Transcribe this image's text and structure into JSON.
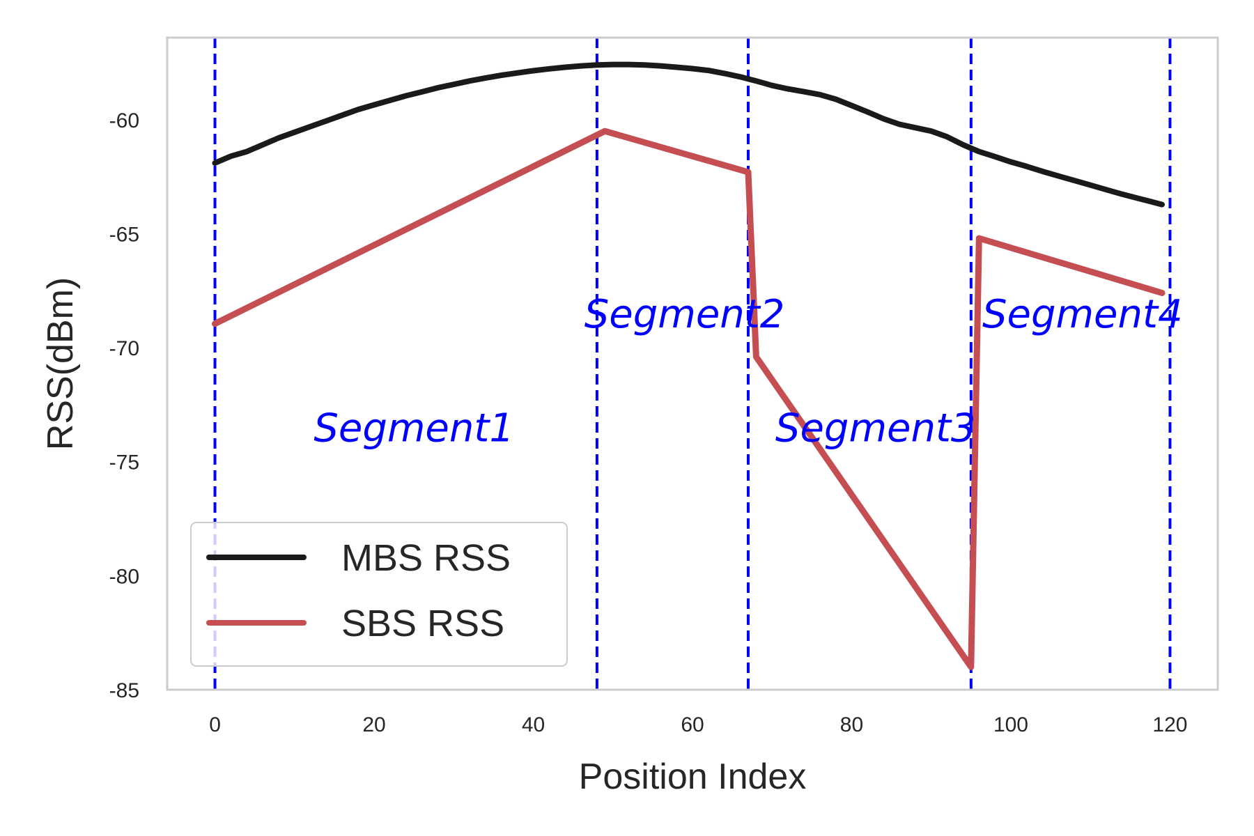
{
  "chart_data": {
    "type": "line",
    "title": "",
    "xlabel": "Position Index",
    "ylabel": "RSS(dBm)",
    "xlim": [
      -6,
      126
    ],
    "ylim": [
      -85,
      -56.4
    ],
    "x_ticks": [
      0,
      20,
      40,
      60,
      80,
      100,
      120
    ],
    "y_ticks": [
      -60,
      -65,
      -70,
      -75,
      -80,
      -85
    ],
    "grid": false,
    "legend_position": "bottom-left",
    "series": [
      {
        "name": "MBS RSS",
        "color": "#1a1a1a",
        "points": [
          [
            0,
            -61.9
          ],
          [
            2,
            -61.6
          ],
          [
            4,
            -61.4
          ],
          [
            6,
            -61.1
          ],
          [
            8,
            -60.8
          ],
          [
            10,
            -60.55
          ],
          [
            12,
            -60.3
          ],
          [
            14,
            -60.05
          ],
          [
            16,
            -59.8
          ],
          [
            18,
            -59.55
          ],
          [
            20,
            -59.35
          ],
          [
            22,
            -59.15
          ],
          [
            24,
            -58.95
          ],
          [
            26,
            -58.78
          ],
          [
            28,
            -58.6
          ],
          [
            30,
            -58.45
          ],
          [
            32,
            -58.3
          ],
          [
            34,
            -58.17
          ],
          [
            36,
            -58.05
          ],
          [
            38,
            -57.95
          ],
          [
            40,
            -57.85
          ],
          [
            42,
            -57.77
          ],
          [
            44,
            -57.7
          ],
          [
            46,
            -57.64
          ],
          [
            48,
            -57.6
          ],
          [
            50,
            -57.58
          ],
          [
            52,
            -57.58
          ],
          [
            54,
            -57.6
          ],
          [
            56,
            -57.64
          ],
          [
            58,
            -57.7
          ],
          [
            60,
            -57.76
          ],
          [
            62,
            -57.84
          ],
          [
            64,
            -57.97
          ],
          [
            66,
            -58.12
          ],
          [
            68,
            -58.3
          ],
          [
            70,
            -58.5
          ],
          [
            72,
            -58.65
          ],
          [
            74,
            -58.77
          ],
          [
            76,
            -58.9
          ],
          [
            78,
            -59.1
          ],
          [
            80,
            -59.38
          ],
          [
            82,
            -59.66
          ],
          [
            84,
            -59.96
          ],
          [
            86,
            -60.2
          ],
          [
            88,
            -60.35
          ],
          [
            90,
            -60.5
          ],
          [
            92,
            -60.75
          ],
          [
            94,
            -61.1
          ],
          [
            96,
            -61.4
          ],
          [
            98,
            -61.62
          ],
          [
            100,
            -61.85
          ],
          [
            102,
            -62.05
          ],
          [
            104,
            -62.27
          ],
          [
            106,
            -62.47
          ],
          [
            108,
            -62.67
          ],
          [
            110,
            -62.87
          ],
          [
            112,
            -63.07
          ],
          [
            114,
            -63.27
          ],
          [
            116,
            -63.45
          ],
          [
            118,
            -63.63
          ],
          [
            119,
            -63.72
          ]
        ]
      },
      {
        "name": "SBS RSS",
        "color": "#c44e52",
        "points": [
          [
            0,
            -68.95
          ],
          [
            49,
            -60.5
          ],
          [
            67,
            -62.3
          ],
          [
            68,
            -70.4
          ],
          [
            95,
            -84.0
          ],
          [
            96,
            -65.2
          ],
          [
            119,
            -67.6
          ]
        ]
      }
    ],
    "segment_boundaries": [
      0,
      48,
      67,
      95,
      120
    ],
    "segment_boundary_color": "#0000ff",
    "annotations": [
      {
        "text": "Segment1",
        "x": 25,
        "y": -73.5,
        "color": "#0000ff"
      },
      {
        "text": "Segment2",
        "x": 59,
        "y": -68.5,
        "color": "#0000ff"
      },
      {
        "text": "Segment3",
        "x": 83,
        "y": -73.5,
        "color": "#0000ff"
      },
      {
        "text": "Segment4",
        "x": 109,
        "y": -68.5,
        "color": "#0000ff"
      }
    ]
  }
}
